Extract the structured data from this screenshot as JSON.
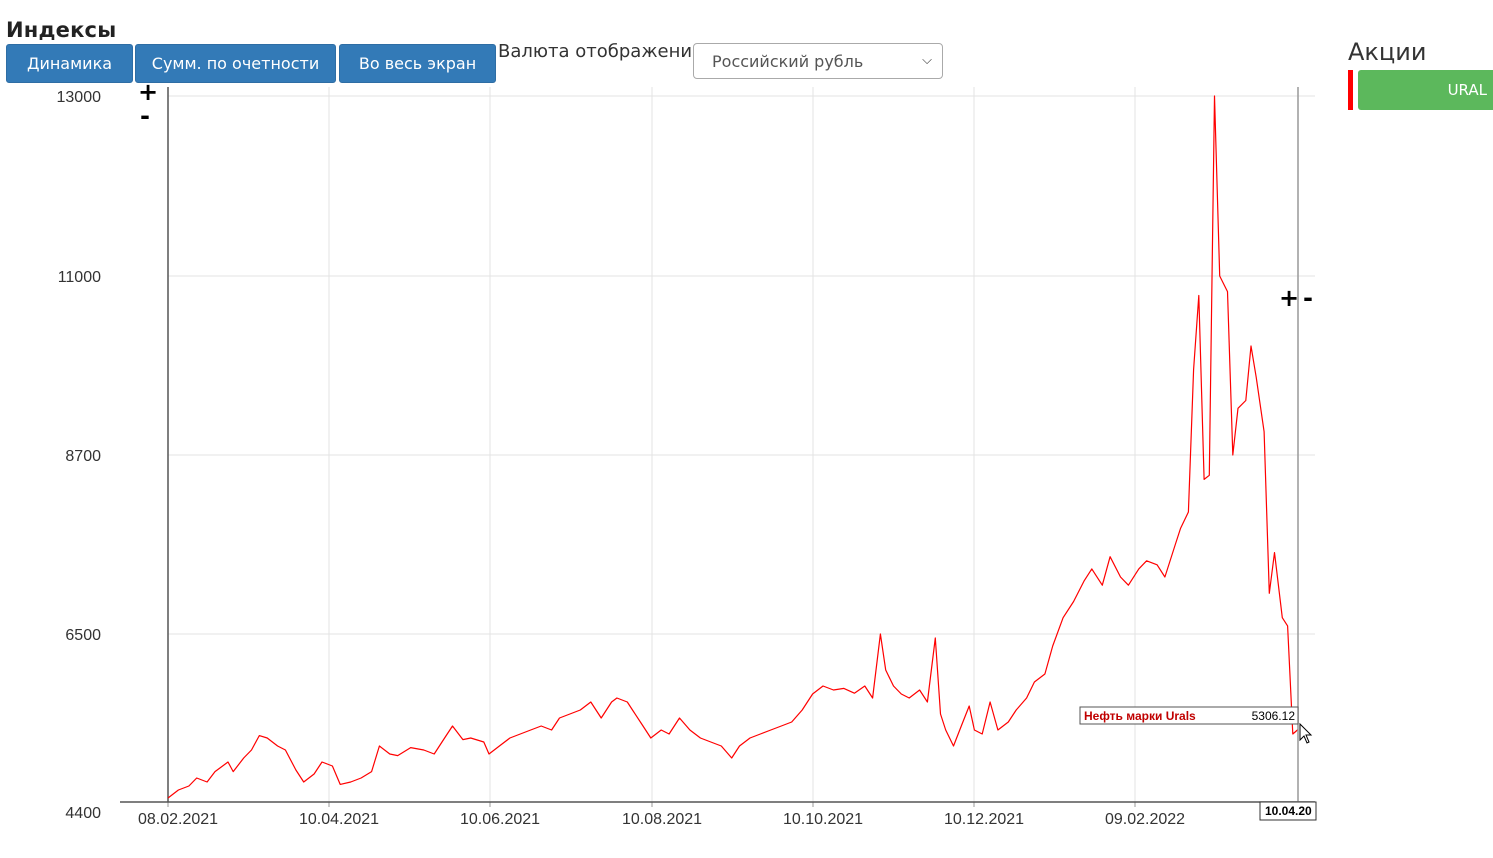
{
  "header": {
    "title": "Индексы",
    "buttons": {
      "dynamics": "Динамика",
      "summary": "Сумм. по очетности",
      "fullscreen": "Во весь экран"
    },
    "currency_label": "Валюта отображения",
    "currency_value": "Российский рубль"
  },
  "sidebar": {
    "title": "Акции",
    "legend_item": "URAL",
    "legend_color": "#ff0000",
    "legend_bg": "#5cb85c"
  },
  "zoom": {
    "plus": "+",
    "minus": "-"
  },
  "tooltip": {
    "name": "Нефть марки Urals",
    "value": "5306.12",
    "date": "10.04.20"
  },
  "chart_data": {
    "type": "line",
    "ytick_labels": [
      "13000",
      "11000",
      "8700",
      "6500",
      "4400"
    ],
    "xtick_labels": [
      "08.02.2021",
      "10.04.2021",
      "10.06.2021",
      "10.08.2021",
      "10.10.2021",
      "10.12.2021",
      "09.02.2022"
    ],
    "grid": true,
    "series": [
      {
        "color": "#ff0000",
        "points": [
          [
            "2021-02-01",
            4450
          ],
          [
            "2021-02-05",
            4550
          ],
          [
            "2021-02-09",
            4600
          ],
          [
            "2021-02-12",
            4700
          ],
          [
            "2021-02-16",
            4650
          ],
          [
            "2021-02-19",
            4780
          ],
          [
            "2021-02-24",
            4900
          ],
          [
            "2021-02-26",
            4780
          ],
          [
            "2021-03-02",
            4950
          ],
          [
            "2021-03-05",
            5050
          ],
          [
            "2021-03-08",
            5230
          ],
          [
            "2021-03-11",
            5200
          ],
          [
            "2021-03-15",
            5100
          ],
          [
            "2021-03-18",
            5050
          ],
          [
            "2021-03-22",
            4800
          ],
          [
            "2021-03-25",
            4650
          ],
          [
            "2021-03-29",
            4750
          ],
          [
            "2021-04-01",
            4900
          ],
          [
            "2021-04-05",
            4850
          ],
          [
            "2021-04-08",
            4620
          ],
          [
            "2021-04-12",
            4650
          ],
          [
            "2021-04-16",
            4700
          ],
          [
            "2021-04-20",
            4780
          ],
          [
            "2021-04-23",
            5100
          ],
          [
            "2021-04-27",
            5000
          ],
          [
            "2021-04-30",
            4980
          ],
          [
            "2021-05-05",
            5080
          ],
          [
            "2021-05-10",
            5050
          ],
          [
            "2021-05-14",
            5000
          ],
          [
            "2021-05-18",
            5200
          ],
          [
            "2021-05-21",
            5350
          ],
          [
            "2021-05-25",
            5180
          ],
          [
            "2021-05-28",
            5200
          ],
          [
            "2021-06-02",
            5150
          ],
          [
            "2021-06-04",
            5000
          ],
          [
            "2021-06-08",
            5100
          ],
          [
            "2021-06-12",
            5200
          ],
          [
            "2021-06-16",
            5250
          ],
          [
            "2021-06-20",
            5300
          ],
          [
            "2021-06-24",
            5350
          ],
          [
            "2021-06-28",
            5300
          ],
          [
            "2021-07-01",
            5450
          ],
          [
            "2021-07-05",
            5500
          ],
          [
            "2021-07-09",
            5550
          ],
          [
            "2021-07-13",
            5650
          ],
          [
            "2021-07-17",
            5450
          ],
          [
            "2021-07-21",
            5650
          ],
          [
            "2021-07-23",
            5700
          ],
          [
            "2021-07-27",
            5650
          ],
          [
            "2021-07-29",
            5550
          ],
          [
            "2021-08-02",
            5350
          ],
          [
            "2021-08-05",
            5200
          ],
          [
            "2021-08-09",
            5300
          ],
          [
            "2021-08-12",
            5250
          ],
          [
            "2021-08-16",
            5450
          ],
          [
            "2021-08-20",
            5300
          ],
          [
            "2021-08-24",
            5200
          ],
          [
            "2021-08-28",
            5150
          ],
          [
            "2021-09-01",
            5100
          ],
          [
            "2021-09-05",
            4950
          ],
          [
            "2021-09-08",
            5100
          ],
          [
            "2021-09-12",
            5200
          ],
          [
            "2021-09-16",
            5250
          ],
          [
            "2021-09-20",
            5300
          ],
          [
            "2021-09-24",
            5350
          ],
          [
            "2021-09-28",
            5400
          ],
          [
            "2021-10-02",
            5550
          ],
          [
            "2021-10-06",
            5750
          ],
          [
            "2021-10-10",
            5850
          ],
          [
            "2021-10-14",
            5800
          ],
          [
            "2021-10-18",
            5820
          ],
          [
            "2021-10-22",
            5760
          ],
          [
            "2021-10-26",
            5850
          ],
          [
            "2021-10-29",
            5700
          ],
          [
            "2021-11-01",
            6500
          ],
          [
            "2021-11-03",
            6050
          ],
          [
            "2021-11-06",
            5850
          ],
          [
            "2021-11-09",
            5750
          ],
          [
            "2021-11-12",
            5700
          ],
          [
            "2021-11-16",
            5800
          ],
          [
            "2021-11-19",
            5650
          ],
          [
            "2021-11-22",
            6450
          ],
          [
            "2021-11-24",
            5500
          ],
          [
            "2021-11-26",
            5300
          ],
          [
            "2021-11-29",
            5100
          ],
          [
            "2021-12-02",
            5350
          ],
          [
            "2021-12-05",
            5600
          ],
          [
            "2021-12-07",
            5300
          ],
          [
            "2021-12-10",
            5250
          ],
          [
            "2021-12-13",
            5650
          ],
          [
            "2021-12-16",
            5300
          ],
          [
            "2021-12-20",
            5400
          ],
          [
            "2021-12-23",
            5550
          ],
          [
            "2021-12-27",
            5700
          ],
          [
            "2021-12-30",
            5900
          ],
          [
            "2022-01-03",
            6000
          ],
          [
            "2022-01-06",
            6350
          ],
          [
            "2022-01-10",
            6700
          ],
          [
            "2022-01-14",
            6900
          ],
          [
            "2022-01-18",
            7150
          ],
          [
            "2022-01-21",
            7300
          ],
          [
            "2022-01-25",
            7100
          ],
          [
            "2022-01-28",
            7450
          ],
          [
            "2022-02-01",
            7200
          ],
          [
            "2022-02-04",
            7100
          ],
          [
            "2022-02-08",
            7300
          ],
          [
            "2022-02-11",
            7400
          ],
          [
            "2022-02-15",
            7350
          ],
          [
            "2022-02-18",
            7200
          ],
          [
            "2022-02-22",
            7600
          ],
          [
            "2022-02-24",
            7800
          ],
          [
            "2022-02-27",
            8000
          ],
          [
            "2022-03-01",
            9800
          ],
          [
            "2022-03-03",
            10750
          ],
          [
            "2022-03-05",
            8400
          ],
          [
            "2022-03-07",
            8450
          ],
          [
            "2022-03-09",
            13000
          ],
          [
            "2022-03-11",
            11000
          ],
          [
            "2022-03-14",
            10800
          ],
          [
            "2022-03-16",
            8700
          ],
          [
            "2022-03-18",
            9300
          ],
          [
            "2022-03-21",
            9400
          ],
          [
            "2022-03-23",
            10100
          ],
          [
            "2022-03-25",
            9700
          ],
          [
            "2022-03-28",
            9000
          ],
          [
            "2022-03-30",
            7000
          ],
          [
            "2022-04-01",
            7500
          ],
          [
            "2022-04-04",
            6700
          ],
          [
            "2022-04-06",
            6600
          ],
          [
            "2022-04-08",
            5250
          ],
          [
            "2022-04-10",
            5306.12
          ]
        ]
      }
    ]
  }
}
